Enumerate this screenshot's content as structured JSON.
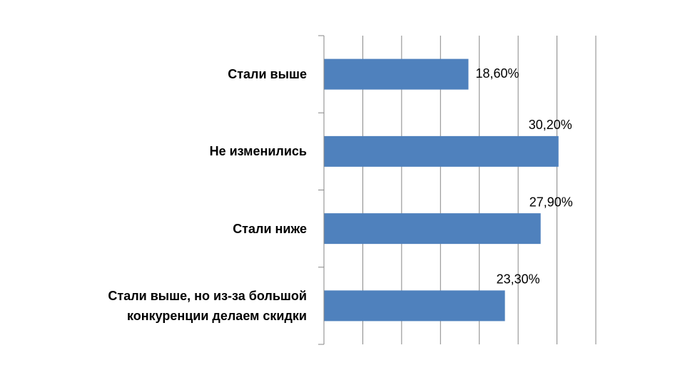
{
  "chart_data": {
    "type": "bar",
    "orientation": "horizontal",
    "categories": [
      "Стали выше",
      "Не изменились",
      "Стали ниже",
      "Стали выше, но из-за большой\nконкуренции делаем скидки"
    ],
    "values": [
      18.6,
      30.2,
      27.9,
      23.3
    ],
    "value_labels": [
      "18,60%",
      "30,20%",
      "27,90%",
      "23,30%"
    ],
    "color": "#4f81bd",
    "xlim": [
      0,
      35
    ],
    "xticks": [
      0,
      5,
      10,
      15,
      20,
      25,
      30,
      35
    ],
    "grid": true
  }
}
